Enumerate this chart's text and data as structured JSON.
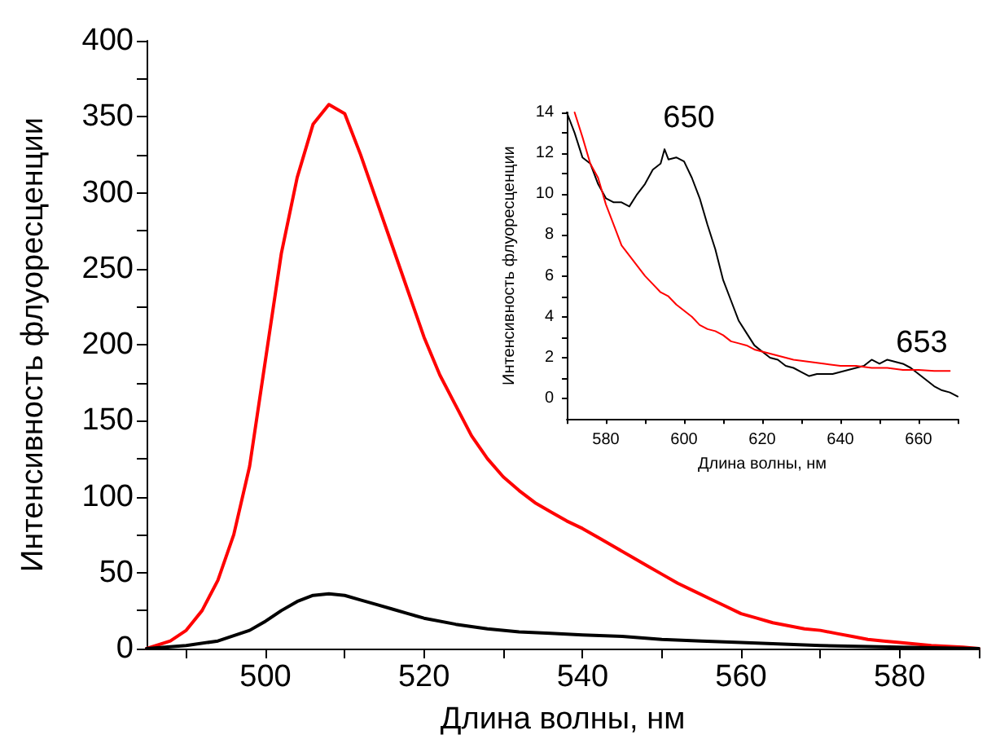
{
  "chart_data": [
    {
      "type": "line",
      "xlabel": "Длина волны, нм",
      "ylabel": "Интенсивность флуоресценции",
      "xlim": [
        485,
        590
      ],
      "xticks": [
        {
          "value": 490,
          "label": null
        },
        500,
        {
          "value": 510,
          "label": null
        },
        520,
        {
          "value": 530,
          "label": null
        },
        540,
        {
          "value": 550,
          "label": null
        },
        560,
        {
          "value": 570,
          "label": null
        },
        580,
        {
          "value": 590,
          "label": null
        }
      ],
      "ylim": [
        0,
        400
      ],
      "yticks": [
        0,
        {
          "value": 25,
          "label": null
        },
        50,
        {
          "value": 75,
          "label": null
        },
        100,
        {
          "value": 125,
          "label": null
        },
        150,
        {
          "value": 175,
          "label": null
        },
        200,
        {
          "value": 225,
          "label": null
        },
        250,
        {
          "value": 275,
          "label": null
        },
        300,
        {
          "value": 325,
          "label": null
        },
        350,
        {
          "value": 375,
          "label": null
        },
        400
      ],
      "grid": false,
      "marker": "none",
      "line_style": "solid",
      "series": [
        {
          "color": "#ff0000",
          "x": [
            485,
            488,
            490,
            492,
            494,
            496,
            498,
            500,
            502,
            504,
            506,
            508,
            510,
            512,
            514,
            516,
            518,
            520,
            522,
            524,
            526,
            528,
            530,
            532,
            534,
            536,
            538,
            540,
            542,
            544,
            546,
            548,
            550,
            552,
            554,
            556,
            558,
            560,
            562,
            564,
            566,
            568,
            570,
            572,
            574,
            576,
            578,
            580,
            584,
            588,
            590
          ],
          "values": [
            0,
            5,
            12,
            25,
            45,
            75,
            120,
            190,
            260,
            310,
            345,
            358,
            352,
            325,
            295,
            265,
            235,
            205,
            180,
            160,
            140,
            125,
            113,
            104,
            96,
            90,
            84,
            79,
            73,
            67,
            61,
            55,
            49,
            43,
            38,
            33,
            28,
            23,
            20,
            17,
            15,
            13,
            12,
            10,
            8,
            6,
            5,
            4,
            2,
            1,
            0
          ]
        },
        {
          "color": "#000000",
          "x": [
            485,
            490,
            494,
            498,
            500,
            502,
            504,
            506,
            508,
            510,
            512,
            514,
            516,
            518,
            520,
            524,
            528,
            532,
            536,
            540,
            545,
            550,
            555,
            560,
            570,
            580,
            590
          ],
          "values": [
            0,
            2,
            5,
            12,
            18,
            25,
            31,
            35,
            36,
            35,
            32,
            29,
            26,
            23,
            20,
            16,
            13,
            11,
            10,
            9,
            8,
            6,
            5,
            4,
            2,
            1,
            0
          ]
        }
      ]
    },
    {
      "type": "line",
      "xlabel": "Длина волны, нм",
      "ylabel": "Интенсивность флуоресценции",
      "xlim": [
        570,
        670
      ],
      "xticks": [
        {
          "value": 570,
          "label": null
        },
        580,
        {
          "value": 590,
          "label": null
        },
        600,
        {
          "value": 610,
          "label": null
        },
        620,
        {
          "value": 630,
          "label": null
        },
        640,
        {
          "value": 650,
          "label": null
        },
        660,
        {
          "value": 670,
          "label": null
        }
      ],
      "ylim": [
        -1,
        14
      ],
      "yticks": [
        0,
        {
          "value": 1,
          "label": null
        },
        2,
        {
          "value": 3,
          "label": null
        },
        4,
        {
          "value": 5,
          "label": null
        },
        6,
        {
          "value": 7,
          "label": null
        },
        8,
        {
          "value": 9,
          "label": null
        },
        10,
        {
          "value": 11,
          "label": null
        },
        12,
        {
          "value": 13,
          "label": null
        },
        14
      ],
      "grid": false,
      "marker": "none",
      "line_style": "solid",
      "annotations": [
        "650",
        "653"
      ],
      "series": [
        {
          "color": "#000000",
          "x": [
            570,
            572,
            574,
            576,
            578,
            580,
            582,
            584,
            586,
            588,
            590,
            592,
            594,
            595,
            596,
            598,
            600,
            602,
            604,
            606,
            608,
            610,
            612,
            614,
            616,
            618,
            620,
            622,
            624,
            626,
            628,
            630,
            632,
            634,
            636,
            638,
            640,
            642,
            644,
            646,
            648,
            650,
            652,
            654,
            656,
            658,
            660,
            662,
            664,
            666,
            668,
            670
          ],
          "values": [
            14,
            13,
            11.8,
            11.5,
            10.5,
            9.8,
            9.6,
            9.6,
            9.4,
            10,
            10.5,
            11.2,
            11.5,
            12.2,
            11.7,
            11.8,
            11.6,
            10.8,
            9.8,
            8.5,
            7.3,
            5.8,
            4.8,
            3.8,
            3.2,
            2.6,
            2.3,
            2,
            1.9,
            1.6,
            1.5,
            1.3,
            1.1,
            1.2,
            1.2,
            1.2,
            1.3,
            1.4,
            1.5,
            1.6,
            1.9,
            1.7,
            1.9,
            1.8,
            1.7,
            1.5,
            1.2,
            0.9,
            0.6,
            0.4,
            0.3,
            0.1
          ]
        },
        {
          "color": "#ff0000",
          "x": [
            572,
            574,
            576,
            578,
            580,
            582,
            584,
            586,
            588,
            590,
            592,
            594,
            596,
            598,
            600,
            602,
            604,
            606,
            608,
            610,
            612,
            614,
            616,
            618,
            620,
            624,
            628,
            632,
            636,
            640,
            644,
            648,
            652,
            656,
            660,
            664,
            668
          ],
          "values": [
            14,
            12.8,
            11.5,
            10.8,
            9.5,
            8.5,
            7.5,
            7,
            6.5,
            6,
            5.6,
            5.2,
            5,
            4.6,
            4.3,
            4,
            3.6,
            3.4,
            3.3,
            3.1,
            2.8,
            2.7,
            2.6,
            2.4,
            2.3,
            2.1,
            1.9,
            1.8,
            1.7,
            1.6,
            1.6,
            1.5,
            1.5,
            1.4,
            1.4,
            1.35,
            1.35
          ]
        }
      ]
    }
  ]
}
